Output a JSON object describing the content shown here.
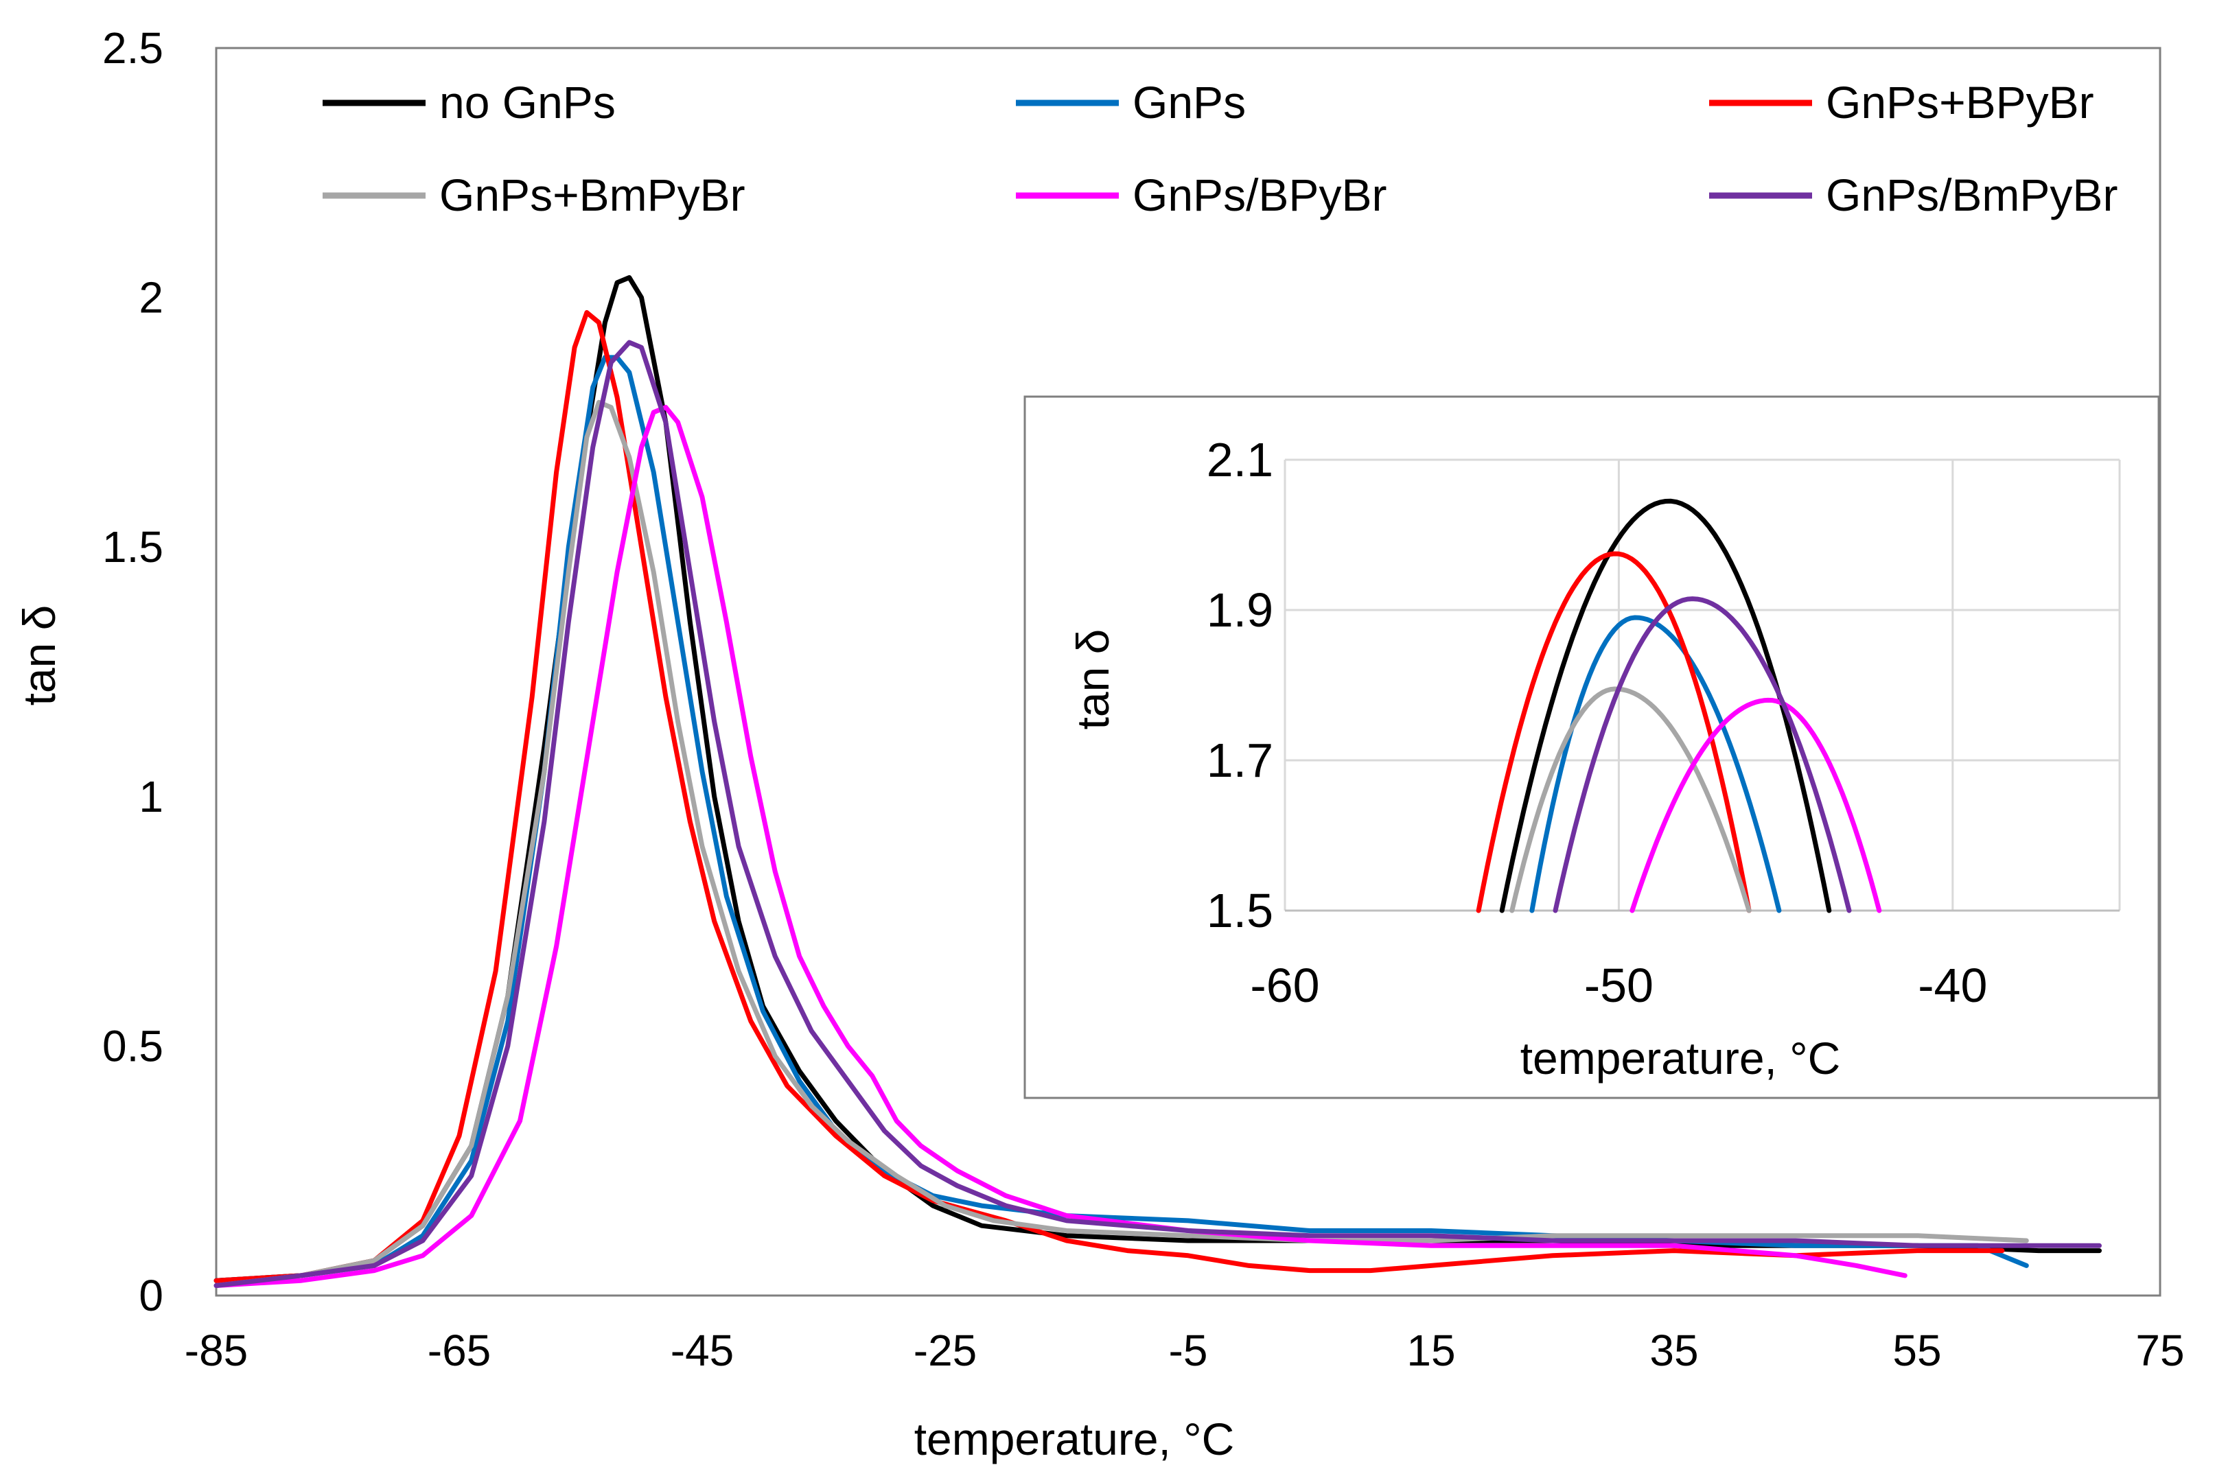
{
  "chart_data": [
    {
      "type": "line",
      "xlabel": "temperature, °C",
      "ylabel": "tan δ",
      "xlim": [
        -85,
        75
      ],
      "ylim": [
        0,
        2.5
      ],
      "xticks": [
        -85,
        -65,
        -45,
        -25,
        -5,
        15,
        35,
        55,
        75
      ],
      "yticks": [
        0,
        0.5,
        1,
        1.5,
        2,
        2.5
      ],
      "ytick_labels": [
        "0",
        "0.5",
        "1",
        "1.5",
        "2",
        "2.5"
      ],
      "grid": false,
      "legend_position": "top",
      "series": [
        {
          "name": "no GnPs",
          "color": "#000000",
          "points": [
            [
              -85,
              0.03
            ],
            [
              -78,
              0.04
            ],
            [
              -72,
              0.07
            ],
            [
              -68,
              0.14
            ],
            [
              -64,
              0.3
            ],
            [
              -61,
              0.6
            ],
            [
              -58,
              1.1
            ],
            [
              -55,
              1.65
            ],
            [
              -53,
              1.95
            ],
            [
              -52,
              2.03
            ],
            [
              -51,
              2.04
            ],
            [
              -50,
              2.0
            ],
            [
              -48,
              1.75
            ],
            [
              -46,
              1.35
            ],
            [
              -44,
              1.0
            ],
            [
              -42,
              0.75
            ],
            [
              -40,
              0.58
            ],
            [
              -37,
              0.45
            ],
            [
              -34,
              0.35
            ],
            [
              -30,
              0.25
            ],
            [
              -26,
              0.18
            ],
            [
              -22,
              0.14
            ],
            [
              -15,
              0.12
            ],
            [
              -5,
              0.11
            ],
            [
              5,
              0.11
            ],
            [
              15,
              0.11
            ],
            [
              25,
              0.11
            ],
            [
              35,
              0.1
            ],
            [
              45,
              0.1
            ],
            [
              55,
              0.1
            ],
            [
              65,
              0.09
            ],
            [
              70,
              0.09
            ]
          ]
        },
        {
          "name": "GnPs",
          "color": "#0070C0",
          "points": [
            [
              -85,
              0.03
            ],
            [
              -78,
              0.04
            ],
            [
              -72,
              0.06
            ],
            [
              -68,
              0.12
            ],
            [
              -64,
              0.27
            ],
            [
              -61,
              0.55
            ],
            [
              -58,
              1.05
            ],
            [
              -56,
              1.5
            ],
            [
              -54,
              1.82
            ],
            [
              -53,
              1.88
            ],
            [
              -52,
              1.88
            ],
            [
              -51,
              1.85
            ],
            [
              -49,
              1.65
            ],
            [
              -47,
              1.35
            ],
            [
              -45,
              1.05
            ],
            [
              -43,
              0.8
            ],
            [
              -40,
              0.57
            ],
            [
              -37,
              0.43
            ],
            [
              -34,
              0.33
            ],
            [
              -30,
              0.25
            ],
            [
              -26,
              0.2
            ],
            [
              -22,
              0.18
            ],
            [
              -15,
              0.16
            ],
            [
              -5,
              0.15
            ],
            [
              5,
              0.13
            ],
            [
              15,
              0.13
            ],
            [
              25,
              0.12
            ],
            [
              35,
              0.11
            ],
            [
              45,
              0.1
            ],
            [
              55,
              0.1
            ],
            [
              60,
              0.1
            ],
            [
              64,
              0.06
            ]
          ]
        },
        {
          "name": "GnPs+BPyBr",
          "color": "#FF0000",
          "points": [
            [
              -85,
              0.03
            ],
            [
              -78,
              0.04
            ],
            [
              -72,
              0.07
            ],
            [
              -68,
              0.15
            ],
            [
              -65,
              0.32
            ],
            [
              -62,
              0.65
            ],
            [
              -59,
              1.2
            ],
            [
              -57,
              1.65
            ],
            [
              -55.5,
              1.9
            ],
            [
              -54.5,
              1.97
            ],
            [
              -53.5,
              1.95
            ],
            [
              -52,
              1.8
            ],
            [
              -50,
              1.5
            ],
            [
              -48,
              1.2
            ],
            [
              -46,
              0.95
            ],
            [
              -44,
              0.75
            ],
            [
              -41,
              0.55
            ],
            [
              -38,
              0.42
            ],
            [
              -34,
              0.32
            ],
            [
              -30,
              0.24
            ],
            [
              -26,
              0.19
            ],
            [
              -20,
              0.15
            ],
            [
              -15,
              0.11
            ],
            [
              -10,
              0.09
            ],
            [
              -5,
              0.08
            ],
            [
              0,
              0.06
            ],
            [
              5,
              0.05
            ],
            [
              10,
              0.05
            ],
            [
              15,
              0.06
            ],
            [
              25,
              0.08
            ],
            [
              35,
              0.09
            ],
            [
              45,
              0.08
            ],
            [
              55,
              0.09
            ],
            [
              62,
              0.09
            ]
          ]
        },
        {
          "name": "GnPs+BmPyBr",
          "color": "#A6A6A6",
          "points": [
            [
              -85,
              0.02
            ],
            [
              -78,
              0.04
            ],
            [
              -72,
              0.07
            ],
            [
              -68,
              0.14
            ],
            [
              -64,
              0.3
            ],
            [
              -61,
              0.6
            ],
            [
              -58,
              1.05
            ],
            [
              -56,
              1.45
            ],
            [
              -54.5,
              1.72
            ],
            [
              -53.5,
              1.79
            ],
            [
              -52.5,
              1.78
            ],
            [
              -51,
              1.68
            ],
            [
              -49,
              1.45
            ],
            [
              -47,
              1.15
            ],
            [
              -45,
              0.9
            ],
            [
              -42,
              0.65
            ],
            [
              -39,
              0.48
            ],
            [
              -36,
              0.38
            ],
            [
              -33,
              0.31
            ],
            [
              -29,
              0.24
            ],
            [
              -25,
              0.18
            ],
            [
              -21,
              0.15
            ],
            [
              -15,
              0.13
            ],
            [
              -5,
              0.12
            ],
            [
              5,
              0.11
            ],
            [
              15,
              0.11
            ],
            [
              25,
              0.12
            ],
            [
              35,
              0.12
            ],
            [
              45,
              0.12
            ],
            [
              55,
              0.12
            ],
            [
              64,
              0.11
            ]
          ]
        },
        {
          "name": "GnPs/BPyBr",
          "color": "#FF00FF",
          "points": [
            [
              -85,
              0.02
            ],
            [
              -78,
              0.03
            ],
            [
              -72,
              0.05
            ],
            [
              -68,
              0.08
            ],
            [
              -64,
              0.16
            ],
            [
              -60,
              0.35
            ],
            [
              -57,
              0.7
            ],
            [
              -54,
              1.15
            ],
            [
              -52,
              1.45
            ],
            [
              -50,
              1.7
            ],
            [
              -49,
              1.77
            ],
            [
              -48,
              1.78
            ],
            [
              -47,
              1.75
            ],
            [
              -45,
              1.6
            ],
            [
              -43,
              1.35
            ],
            [
              -41,
              1.08
            ],
            [
              -39,
              0.85
            ],
            [
              -37,
              0.68
            ],
            [
              -35,
              0.58
            ],
            [
              -33,
              0.5
            ],
            [
              -32,
              0.47
            ],
            [
              -31,
              0.44
            ],
            [
              -29,
              0.35
            ],
            [
              -27,
              0.3
            ],
            [
              -24,
              0.25
            ],
            [
              -20,
              0.2
            ],
            [
              -15,
              0.16
            ],
            [
              -5,
              0.13
            ],
            [
              5,
              0.11
            ],
            [
              15,
              0.1
            ],
            [
              25,
              0.1
            ],
            [
              35,
              0.1
            ],
            [
              45,
              0.08
            ],
            [
              50,
              0.06
            ],
            [
              54,
              0.04
            ]
          ]
        },
        {
          "name": "GnPs/BmPyBr",
          "color": "#7030A0",
          "points": [
            [
              -85,
              0.02
            ],
            [
              -78,
              0.04
            ],
            [
              -72,
              0.06
            ],
            [
              -68,
              0.11
            ],
            [
              -64,
              0.24
            ],
            [
              -61,
              0.5
            ],
            [
              -58,
              0.95
            ],
            [
              -56,
              1.35
            ],
            [
              -54,
              1.7
            ],
            [
              -52.5,
              1.87
            ],
            [
              -51,
              1.91
            ],
            [
              -50,
              1.9
            ],
            [
              -48,
              1.75
            ],
            [
              -46,
              1.45
            ],
            [
              -44,
              1.15
            ],
            [
              -42,
              0.9
            ],
            [
              -39,
              0.68
            ],
            [
              -36,
              0.53
            ],
            [
              -33,
              0.43
            ],
            [
              -30,
              0.33
            ],
            [
              -27,
              0.26
            ],
            [
              -24,
              0.22
            ],
            [
              -20,
              0.18
            ],
            [
              -15,
              0.15
            ],
            [
              -5,
              0.13
            ],
            [
              5,
              0.12
            ],
            [
              15,
              0.12
            ],
            [
              25,
              0.11
            ],
            [
              35,
              0.11
            ],
            [
              45,
              0.11
            ],
            [
              55,
              0.1
            ],
            [
              65,
              0.1
            ],
            [
              70,
              0.1
            ]
          ]
        }
      ]
    },
    {
      "type": "line",
      "xlabel": "temperature, °C",
      "ylabel": "tan δ",
      "xlim": [
        -60,
        -35
      ],
      "ylim": [
        1.5,
        2.1
      ],
      "xticks": [
        -60,
        -50,
        -40
      ],
      "yticks": [
        1.5,
        1.7,
        1.9,
        2.1
      ],
      "ytick_labels": [
        "1.5",
        "1.7",
        "1.9",
        "2.1"
      ],
      "grid": true,
      "series": [
        {
          "name": "no GnPs",
          "color": "#000000",
          "peak": [
            -48.5,
            2.045
          ],
          "range": [
            -53.5,
            -43.7
          ]
        },
        {
          "name": "GnPs",
          "color": "#0070C0",
          "peak": [
            -49.5,
            1.89
          ],
          "range": [
            -52.6,
            -45.2
          ]
        },
        {
          "name": "GnPs+BPyBr",
          "color": "#FF0000",
          "peak": [
            -50.1,
            1.975
          ],
          "range": [
            -54.2,
            -46.1
          ]
        },
        {
          "name": "GnPs+BmPyBr",
          "color": "#A6A6A6",
          "peak": [
            -50.1,
            1.795
          ],
          "range": [
            -53.2,
            -46.1
          ]
        },
        {
          "name": "GnPs/BPyBr",
          "color": "#FF00FF",
          "peak": [
            -45.5,
            1.78
          ],
          "range": [
            -49.6,
            -42.2
          ]
        },
        {
          "name": "GnPs/BmPyBr",
          "color": "#7030A0",
          "peak": [
            -47.8,
            1.915
          ],
          "range": [
            -51.9,
            -43.1
          ]
        }
      ]
    }
  ]
}
